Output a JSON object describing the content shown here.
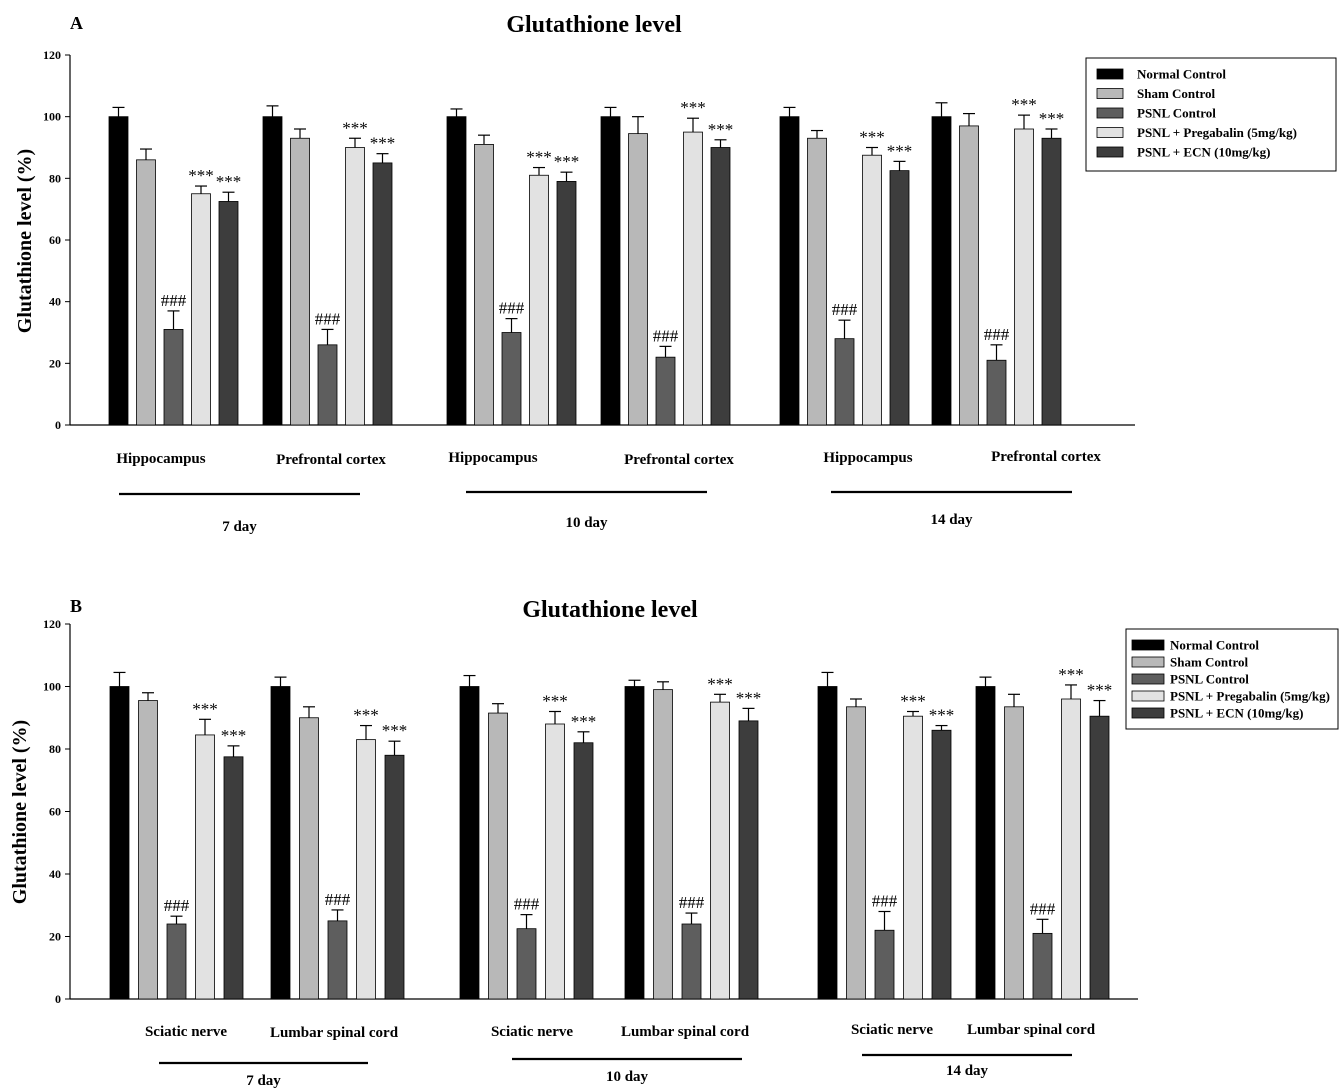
{
  "colors": [
    "#000000",
    "#b8b8b8",
    "#5e5e5e",
    "#e2e2e2",
    "#3d3d3d"
  ],
  "legend": [
    "Normal Control",
    "Sham Control",
    "PSNL Control",
    "PSNL + Pregabalin (5mg/kg)",
    "PSNL + ECN (10mg/kg)"
  ],
  "chart_data": [
    {
      "type": "bar",
      "panel_label": "A",
      "title": "Glutathione level",
      "ylabel": "Glutathione level (%)",
      "ylim": [
        0,
        120
      ],
      "yticks": [
        0,
        20,
        40,
        60,
        80,
        100,
        120
      ],
      "legend_placement": "top-right",
      "grid": false,
      "categories": [
        "Hippocampus",
        "Prefrontal cortex",
        "Hippocampus",
        "Prefrontal cortex",
        "Hippocampus",
        "Prefrontal cortex"
      ],
      "groups": [
        {
          "label": "7 day",
          "categories": [
            0,
            1
          ]
        },
        {
          "label": "10 day",
          "categories": [
            2,
            3
          ]
        },
        {
          "label": "14 day",
          "categories": [
            4,
            5
          ]
        }
      ],
      "series": [
        {
          "name": "Normal Control",
          "values": [
            100,
            100,
            100,
            100,
            100,
            100
          ],
          "errors": [
            3,
            3.5,
            2.5,
            3,
            3,
            4.5
          ],
          "annotations": [
            "",
            "",
            "",
            "",
            "",
            ""
          ]
        },
        {
          "name": "Sham Control",
          "values": [
            86,
            93,
            91,
            94.5,
            93,
            97
          ],
          "errors": [
            3.5,
            3,
            3,
            5.5,
            2.5,
            4
          ],
          "annotations": [
            "",
            "",
            "",
            "",
            "",
            ""
          ]
        },
        {
          "name": "PSNL Control",
          "values": [
            31,
            26,
            30,
            22,
            28,
            21
          ],
          "errors": [
            6,
            5,
            4.5,
            3.5,
            6,
            5
          ],
          "annotations": [
            "###",
            "###",
            "###",
            "###",
            "###",
            "###"
          ]
        },
        {
          "name": "PSNL + Pregabalin (5mg/kg)",
          "values": [
            75,
            90,
            81,
            95,
            87.5,
            96
          ],
          "errors": [
            2.5,
            3,
            2.5,
            4.5,
            2.5,
            4.5
          ],
          "annotations": [
            "***",
            "***",
            "***",
            "***",
            "***",
            "***"
          ]
        },
        {
          "name": "PSNL + ECN (10mg/kg)",
          "values": [
            72.5,
            85,
            79,
            90,
            82.5,
            93
          ],
          "errors": [
            3,
            3,
            3,
            2.5,
            3,
            3
          ],
          "annotations": [
            "***",
            "***",
            "***",
            "***",
            "***",
            "***"
          ]
        }
      ]
    },
    {
      "type": "bar",
      "panel_label": "B",
      "title": "Glutathione level",
      "ylabel": "Glutathione level (%)",
      "ylim": [
        0,
        120
      ],
      "yticks": [
        0,
        20,
        40,
        60,
        80,
        100,
        120
      ],
      "legend_placement": "top-right",
      "grid": false,
      "categories": [
        "Sciatic nerve",
        "Lumbar spinal cord",
        "Sciatic nerve",
        "Lumbar spinal cord",
        "Sciatic nerve",
        "Lumbar spinal cord"
      ],
      "groups": [
        {
          "label": "7 day",
          "categories": [
            0,
            1
          ]
        },
        {
          "label": "10 day",
          "categories": [
            2,
            3
          ]
        },
        {
          "label": "14 day",
          "categories": [
            4,
            5
          ]
        }
      ],
      "series": [
        {
          "name": "Normal Control",
          "values": [
            100,
            100,
            100,
            100,
            100,
            100
          ],
          "errors": [
            4.5,
            3,
            3.5,
            2,
            4.5,
            3
          ],
          "annotations": [
            "",
            "",
            "",
            "",
            "",
            ""
          ]
        },
        {
          "name": "Sham Control",
          "values": [
            95.5,
            90,
            91.5,
            99,
            93.5,
            93.5
          ],
          "errors": [
            2.5,
            3.5,
            3,
            2.5,
            2.5,
            4
          ],
          "annotations": [
            "",
            "",
            "",
            "",
            "",
            ""
          ]
        },
        {
          "name": "PSNL Control",
          "values": [
            24,
            25,
            22.5,
            24,
            22,
            21
          ],
          "errors": [
            2.5,
            3.5,
            4.5,
            3.5,
            6,
            4.5
          ],
          "annotations": [
            "###",
            "###",
            "###",
            "###",
            "###",
            "###"
          ]
        },
        {
          "name": "PSNL + Pregabalin (5mg/kg)",
          "values": [
            84.5,
            83,
            88,
            95,
            90.5,
            96
          ],
          "errors": [
            5,
            4.5,
            4,
            2.5,
            1.5,
            4.5
          ],
          "annotations": [
            "***",
            "***",
            "***",
            "***",
            "***",
            "***"
          ]
        },
        {
          "name": "PSNL + ECN (10mg/kg)",
          "values": [
            77.5,
            78,
            82,
            89,
            86,
            90.5
          ],
          "errors": [
            3.5,
            4.5,
            3.5,
            4,
            1.5,
            5
          ],
          "annotations": [
            "***",
            "***",
            "***",
            "***",
            "***",
            "***"
          ]
        }
      ]
    }
  ]
}
